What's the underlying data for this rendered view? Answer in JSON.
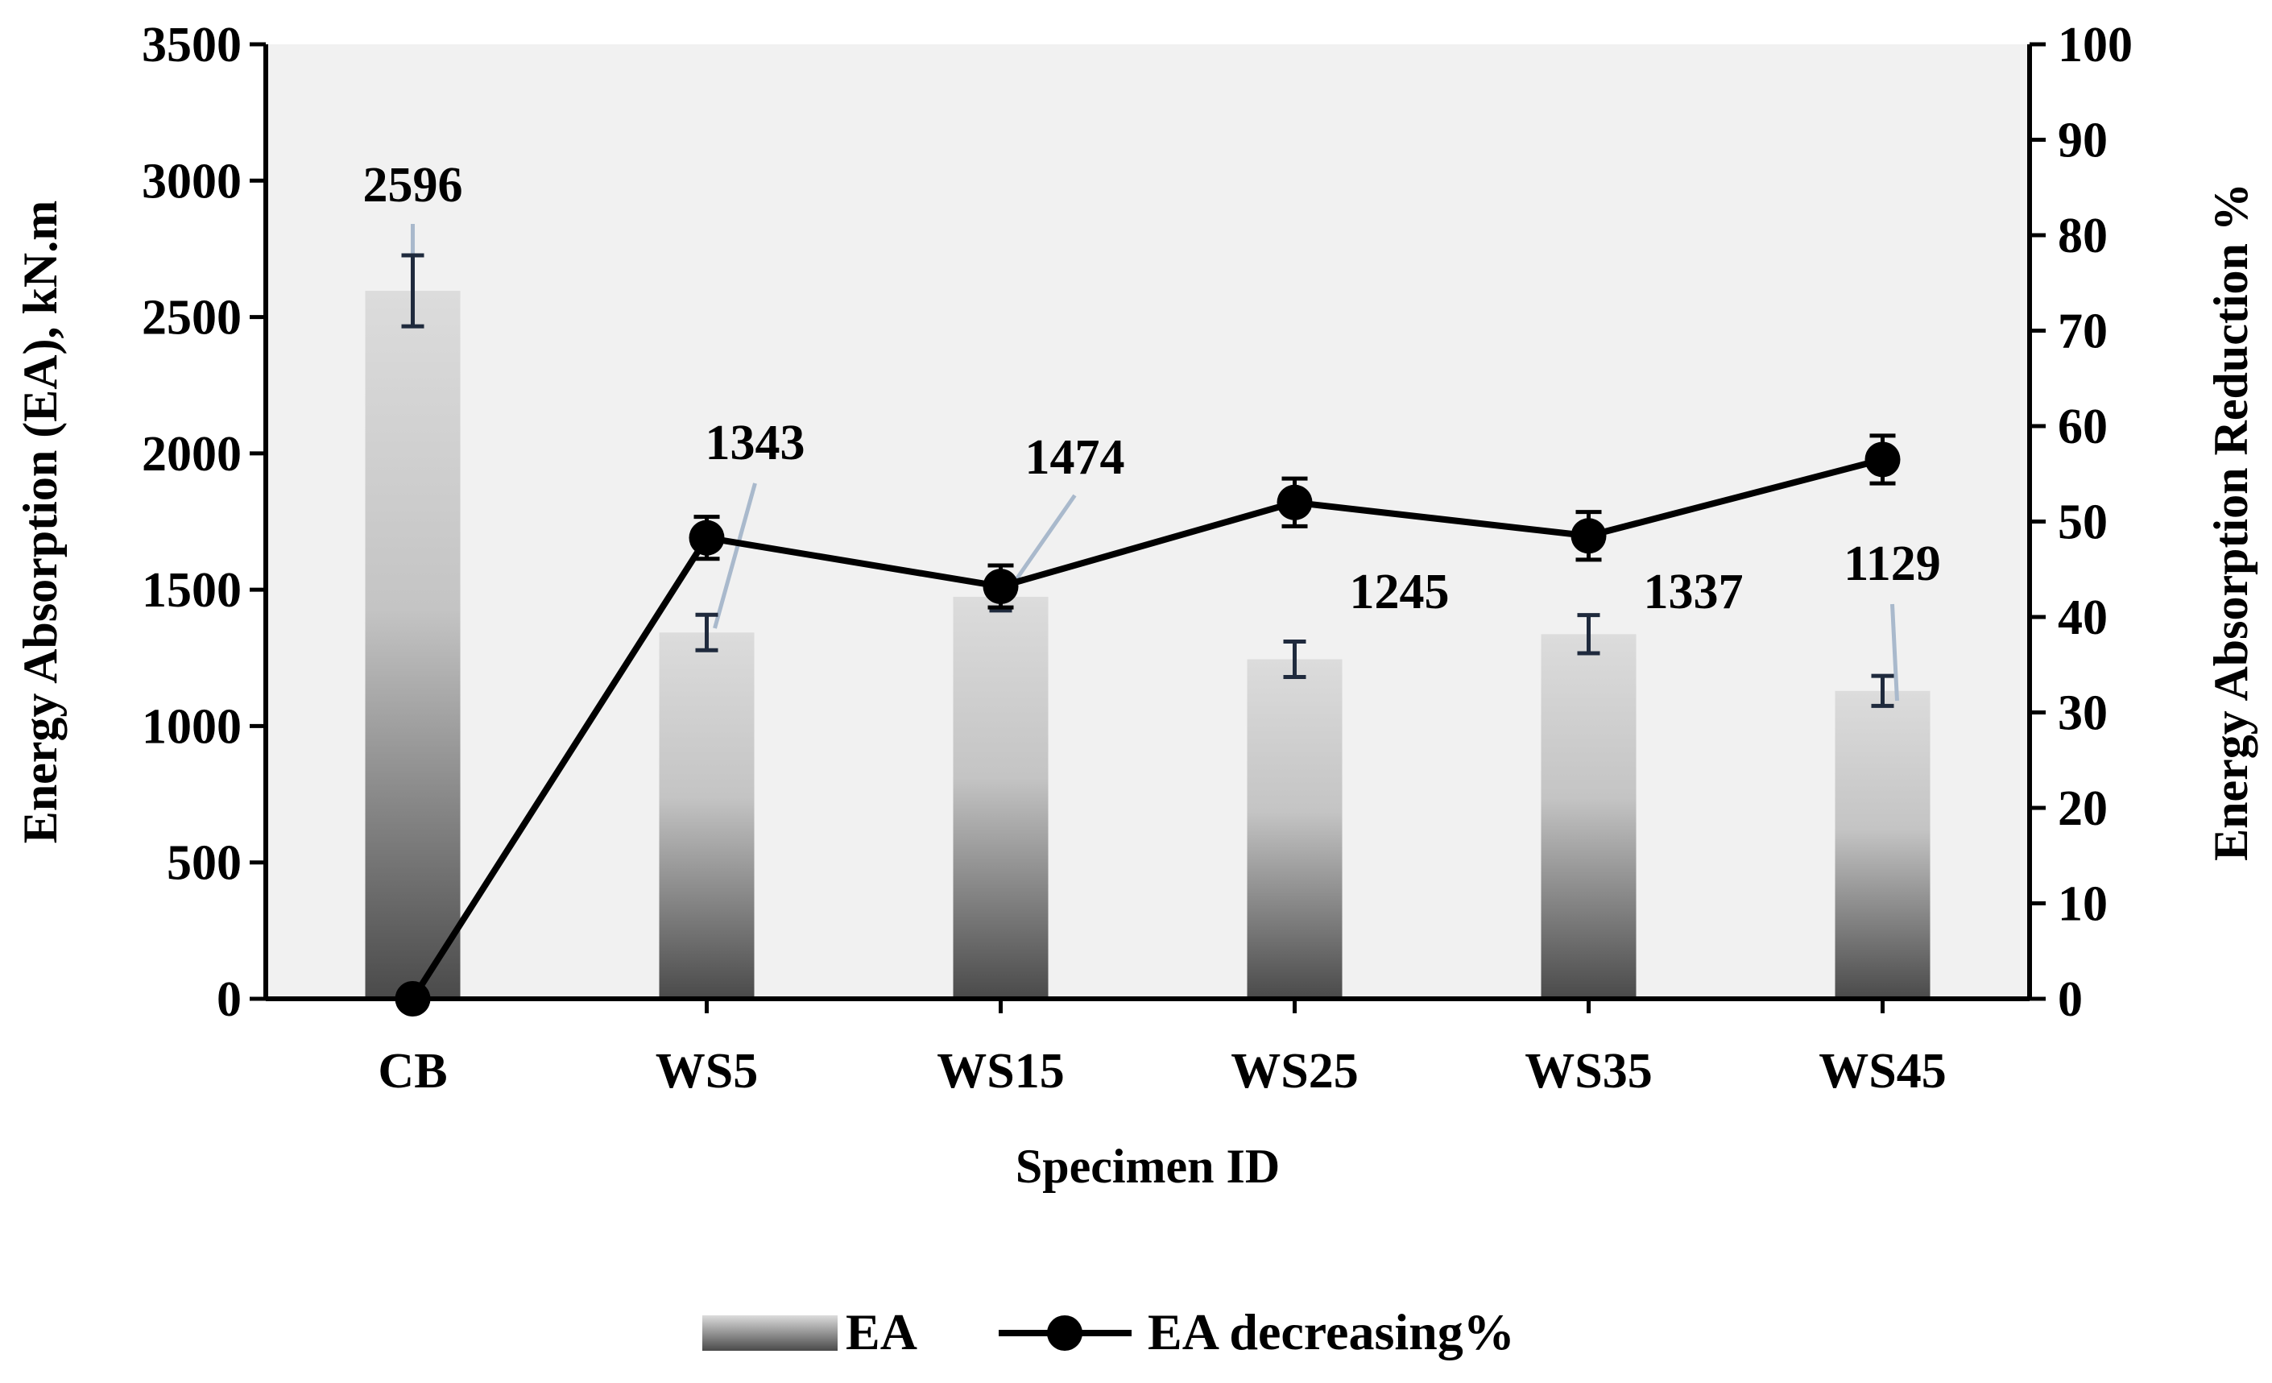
{
  "chart_data": {
    "type": "bar",
    "categories": [
      "CB",
      "WS5",
      "WS15",
      "WS25",
      "WS35",
      "WS45"
    ],
    "series": [
      {
        "name": "EA",
        "kind": "bar",
        "axis": "left",
        "values": [
          2596,
          1343,
          1474,
          1245,
          1337,
          1129
        ],
        "error": [
          130,
          65,
          50,
          65,
          70,
          55
        ],
        "labels": [
          "2596",
          "1343",
          "1474",
          "1245",
          "1337",
          "1129"
        ]
      },
      {
        "name": "EA decreasing%",
        "kind": "line",
        "axis": "right",
        "values": [
          0,
          48.3,
          43.2,
          52.0,
          48.5,
          56.5
        ],
        "error": [
          0,
          2.2,
          2.2,
          2.5,
          2.5,
          2.5
        ]
      }
    ],
    "xlabel": "Specimen ID",
    "ylabel": "Energy Absorption (EA), kN.m",
    "y2label": "Energy Absorption Reduction %",
    "ylim": [
      0,
      3500
    ],
    "y2lim": [
      0,
      100
    ],
    "yticks": [
      "0",
      "500",
      "1000",
      "1500",
      "2000",
      "2500",
      "3000",
      "3500"
    ],
    "y2ticks": [
      "0",
      "10",
      "20",
      "30",
      "40",
      "50",
      "60",
      "70",
      "80",
      "90",
      "100"
    ],
    "grid": false,
    "legend": "bottom-center",
    "colors": {
      "plot_bg": "#f1f1f1",
      "bar_light": "#d2d2d2",
      "bar_dark": "#4a4a4a",
      "line": "#000000",
      "leader": "#a9b9cc"
    }
  }
}
